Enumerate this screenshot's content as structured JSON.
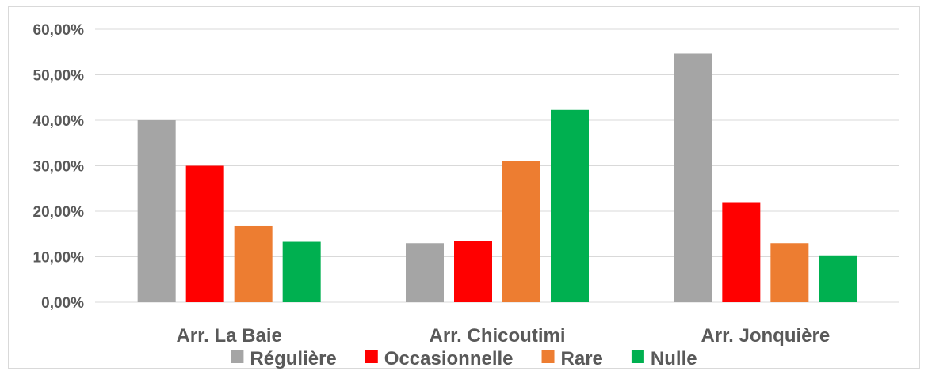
{
  "chart_data": {
    "type": "bar",
    "categories": [
      "Arr. La Baie",
      "Arr. Chicoutimi",
      "Arr. Jonquière"
    ],
    "series": [
      {
        "name": "Régulière",
        "color": "#a5a5a5",
        "values": [
          0.4,
          0.13,
          0.547
        ]
      },
      {
        "name": "Occasionnelle",
        "color": "#ff0000",
        "values": [
          0.3,
          0.135,
          0.22
        ]
      },
      {
        "name": "Rare",
        "color": "#ed7d31",
        "values": [
          0.167,
          0.31,
          0.13
        ]
      },
      {
        "name": "Nulle",
        "color": "#00b050",
        "values": [
          0.133,
          0.423,
          0.103
        ]
      }
    ],
    "y_ticks": [
      "0,00%",
      "10,00%",
      "20,00%",
      "30,00%",
      "40,00%",
      "50,00%",
      "60,00%"
    ],
    "ylim": [
      0,
      0.6
    ],
    "grid": true,
    "legend_position": "bottom",
    "title": "",
    "xlabel": "",
    "ylabel": ""
  }
}
